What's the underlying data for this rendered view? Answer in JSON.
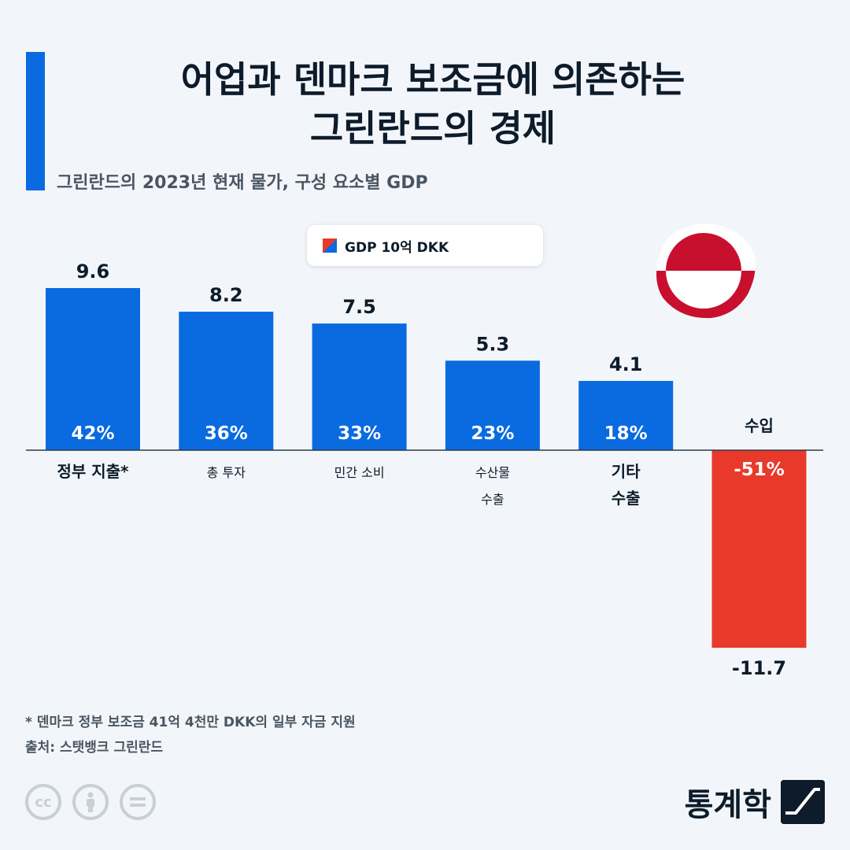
{
  "title": {
    "line1": "어업과 덴마크 보조금에 의존하는",
    "line2": "그린란드의 경제"
  },
  "subtitle": "그린란드의 2023년 현재 물가, 구성 요소별 GDP",
  "legend_label": "GDP 10억 DKK",
  "footnote": "* 덴마크 정부 보조금 41억 4천만 DKK의 일부 자금 지원",
  "source": "출처: 스탯뱅크 그린란드",
  "brand": "통계학",
  "license_icons": [
    "cc-icon",
    "person-icon",
    "equals-icon"
  ],
  "colors": {
    "positive": "#0a6ae0",
    "negative": "#e8392a",
    "flag_red": "#c8102e"
  },
  "chart_data": {
    "type": "bar",
    "title": "어업과 덴마크 보조금에 의존하는 그린란드의 경제",
    "legend": "GDP 10억 DKK",
    "categories": [
      [
        "정부 지출*"
      ],
      [
        "총 투자"
      ],
      [
        "민간 소비"
      ],
      [
        "수산물",
        "수출"
      ],
      [
        "기타",
        "수출"
      ],
      [
        "수입"
      ]
    ],
    "values": [
      9.6,
      8.2,
      7.5,
      5.3,
      4.1,
      -11.7
    ],
    "value_labels": [
      "9.6",
      "8.2",
      "7.5",
      "5.3",
      "4.1",
      "-11.7"
    ],
    "percent_labels": [
      "42%",
      "36%",
      "33%",
      "23%",
      "18%",
      "-51%"
    ],
    "ylim": [
      -11.7,
      9.6
    ]
  }
}
